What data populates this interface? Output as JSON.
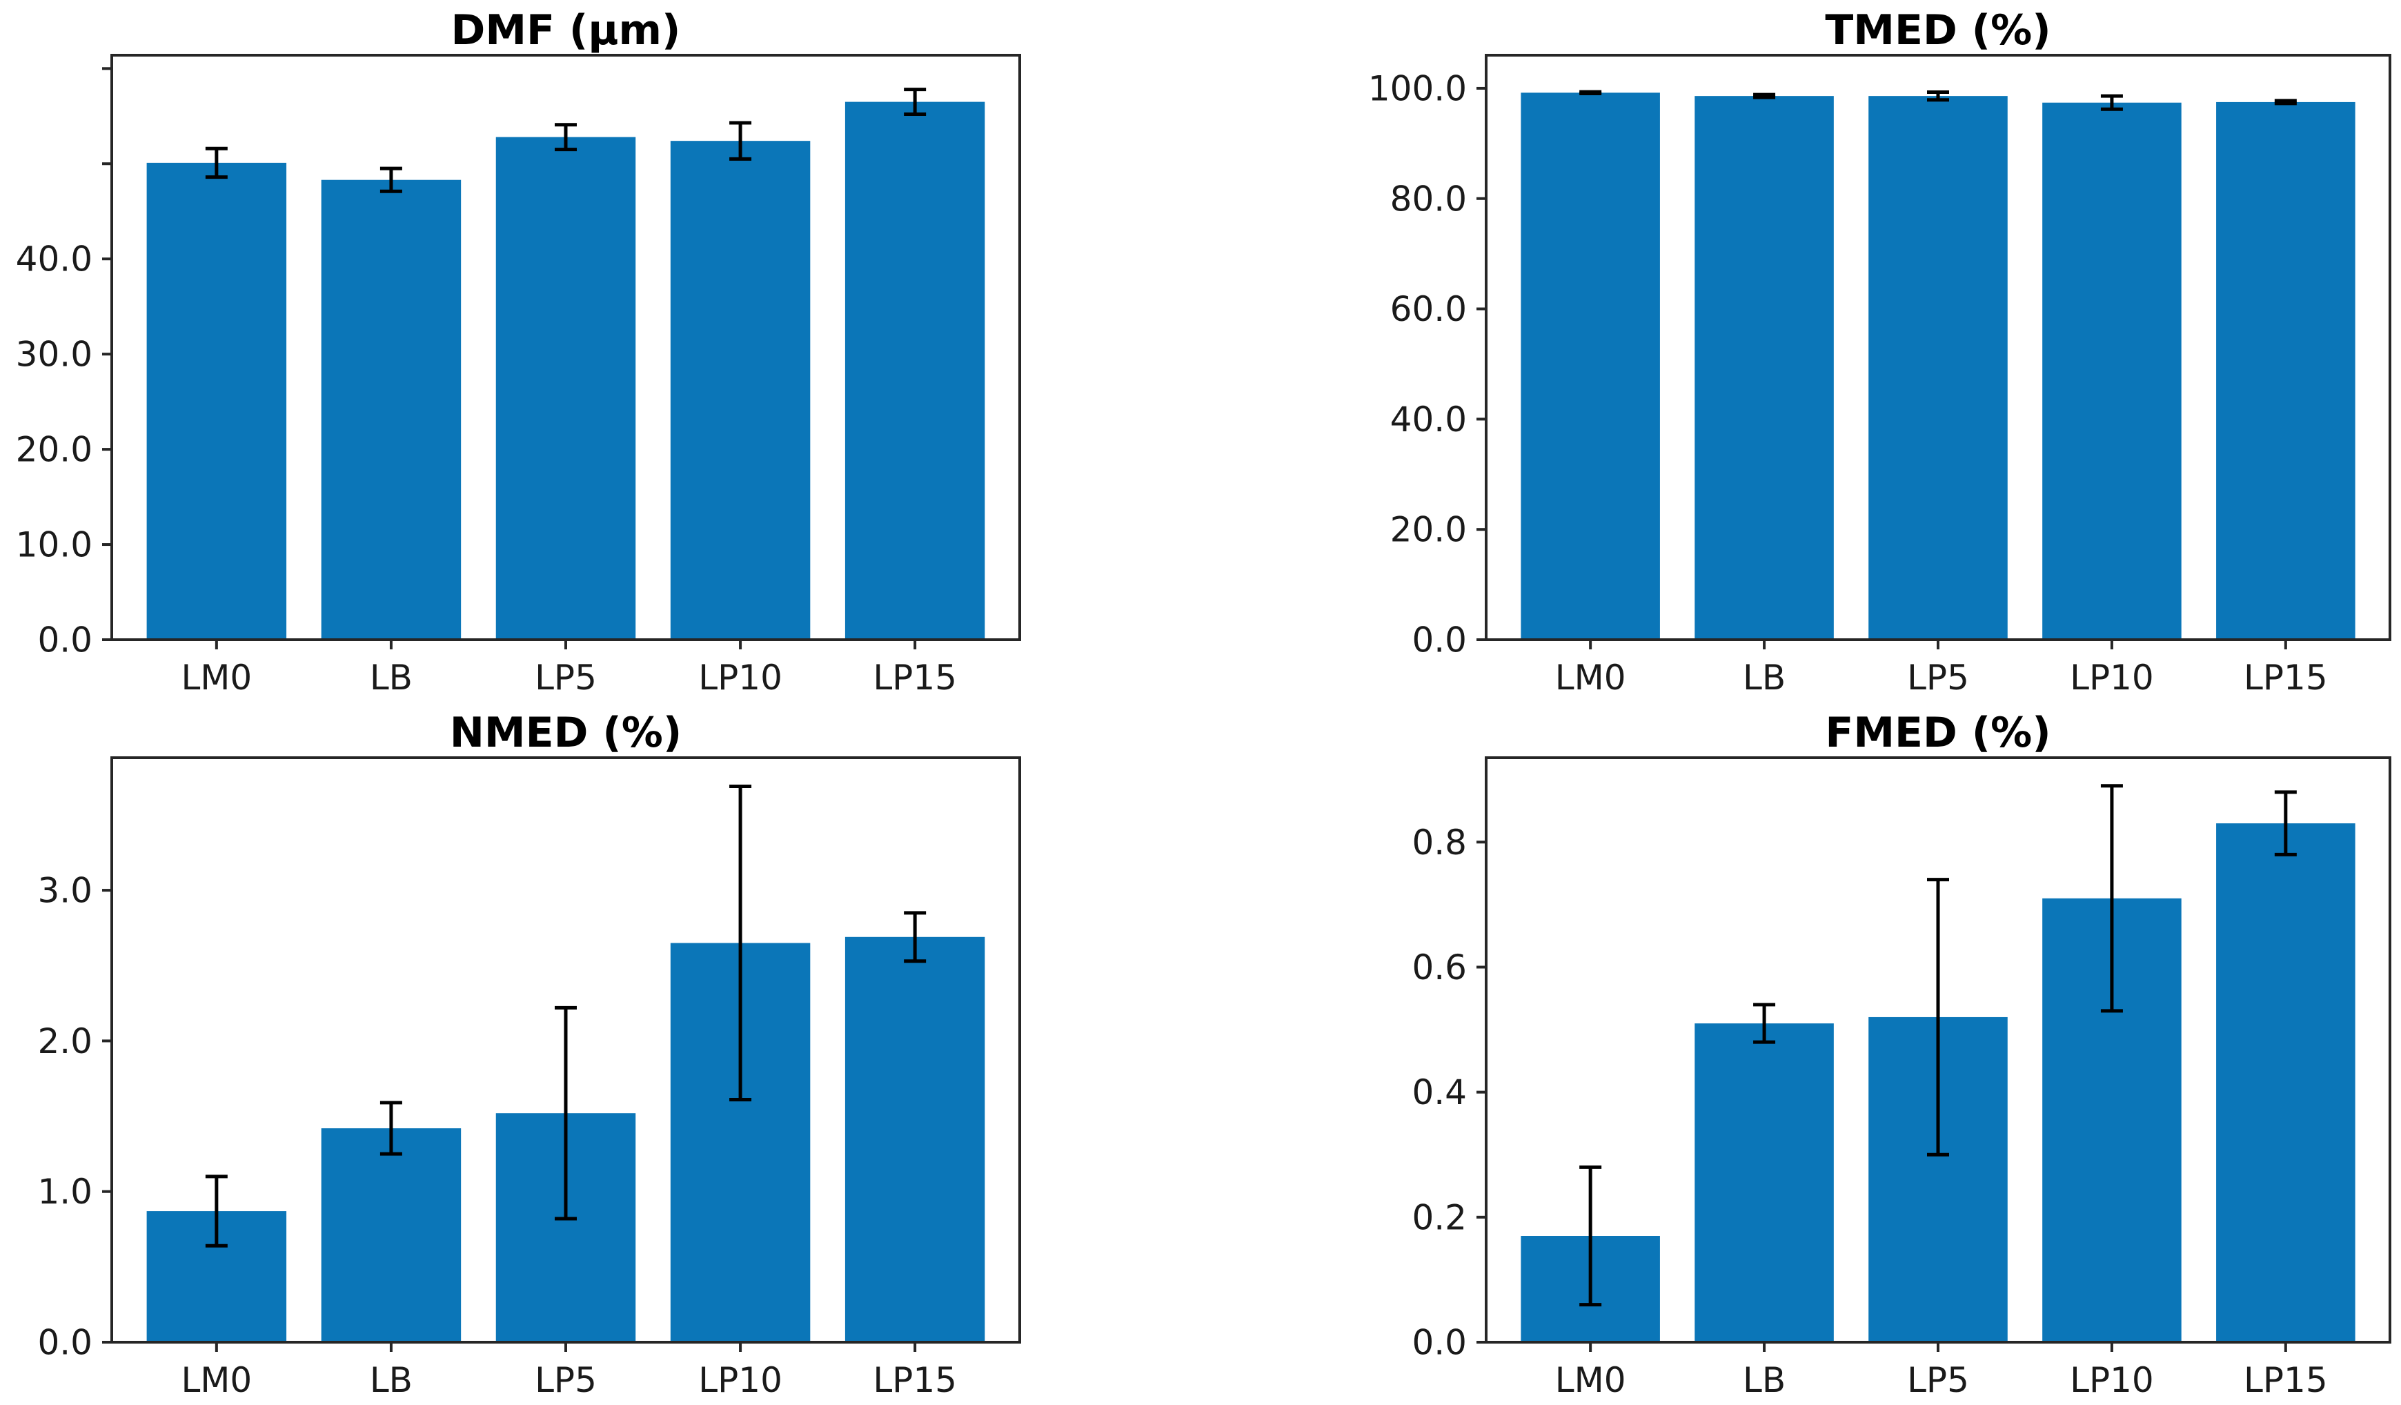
{
  "figure": {
    "background": "#ffffff",
    "bar_color": "#0b76b8",
    "error_color": "#000000",
    "axis_color": "#262626",
    "text_color": "#1a1a1a"
  },
  "chart_data": [
    {
      "id": "dmf",
      "type": "bar",
      "title": "DMF (μm)",
      "xlabel": "",
      "ylabel": "",
      "grid": false,
      "legend": null,
      "categories": [
        "LM0",
        "LB",
        "LP5",
        "LP10",
        "LP15"
      ],
      "values": [
        50.1,
        48.3,
        52.8,
        52.4,
        56.5
      ],
      "errors": [
        1.5,
        1.2,
        1.3,
        1.9,
        1.3
      ],
      "ylim": [
        0,
        61.4
      ],
      "yticks": [
        0,
        10,
        20,
        30,
        40,
        50,
        60
      ],
      "ytick_labels": [
        "0.0",
        "10.0",
        "20.0",
        "30.0",
        "40.0",
        "",
        ""
      ]
    },
    {
      "id": "tmed",
      "type": "bar",
      "title": "TMED (%)",
      "xlabel": "",
      "ylabel": "",
      "grid": false,
      "legend": null,
      "categories": [
        "LM0",
        "LB",
        "LP5",
        "LP10",
        "LP15"
      ],
      "values": [
        99.2,
        98.6,
        98.6,
        97.4,
        97.5
      ],
      "errors": [
        0.15,
        0.25,
        0.7,
        1.2,
        0.25
      ],
      "ylim": [
        0,
        106
      ],
      "yticks": [
        0,
        20,
        40,
        60,
        80,
        100
      ],
      "ytick_labels": [
        "0.0",
        "20.0",
        "40.0",
        "60.0",
        "80.0",
        "100.0"
      ]
    },
    {
      "id": "nmed",
      "type": "bar",
      "title": "NMED (%)",
      "xlabel": "",
      "ylabel": "",
      "grid": false,
      "legend": null,
      "categories": [
        "LM0",
        "LB",
        "LP5",
        "LP10",
        "LP15"
      ],
      "values": [
        0.87,
        1.42,
        1.52,
        2.65,
        2.69
      ],
      "errors": [
        0.23,
        0.17,
        0.7,
        1.04,
        0.16
      ],
      "ylim": [
        0,
        3.88
      ],
      "yticks": [
        0,
        1,
        2,
        3
      ],
      "ytick_labels": [
        "0.0",
        "1.0",
        "2.0",
        "3.0"
      ]
    },
    {
      "id": "fmed",
      "type": "bar",
      "title": "FMED (%)",
      "xlabel": "",
      "ylabel": "",
      "grid": false,
      "legend": null,
      "categories": [
        "LM0",
        "LB",
        "LP5",
        "LP10",
        "LP15"
      ],
      "values": [
        0.17,
        0.51,
        0.52,
        0.71,
        0.83
      ],
      "errors": [
        0.11,
        0.03,
        0.22,
        0.18,
        0.05
      ],
      "ylim": [
        0,
        0.935
      ],
      "yticks": [
        0,
        0.2,
        0.4,
        0.6,
        0.8
      ],
      "ytick_labels": [
        "0.0",
        "0.2",
        "0.4",
        "0.6",
        "0.8"
      ]
    }
  ]
}
